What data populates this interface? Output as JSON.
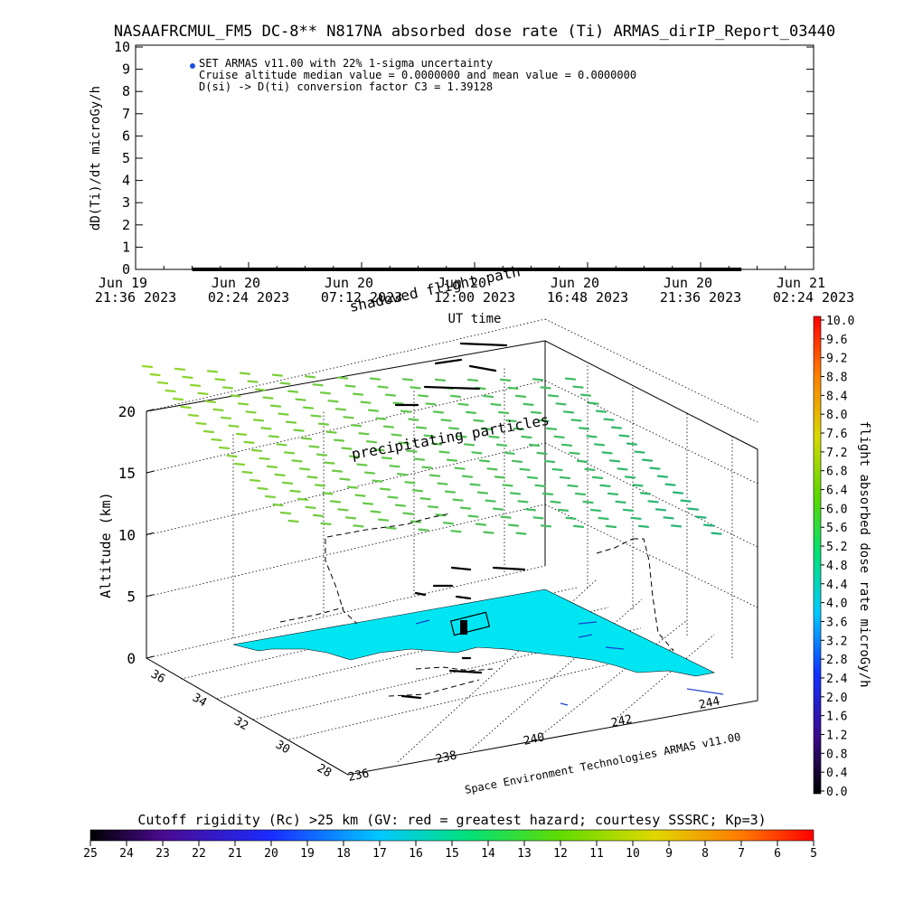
{
  "title": "NASAAFRCMUL_FM5 DC-8** N817NA absorbed dose rate (Ti) ARMAS_dirIP_Report_03440",
  "chart_data": [
    {
      "type": "scatter",
      "ylabel": "dD(Ti)/dt microGy/h",
      "xlabel": "UT time",
      "ylim": [
        0,
        10
      ],
      "yticks": [
        "0",
        "1",
        "2",
        "3",
        "4",
        "5",
        "6",
        "7",
        "8",
        "9",
        "10"
      ],
      "xticks": [
        {
          "line1": "Jun 19",
          "line2": "21:36 2023"
        },
        {
          "line1": "Jun 20",
          "line2": "02:24 2023"
        },
        {
          "line1": "Jun 20",
          "line2": "07:12 2023"
        },
        {
          "line1": "Jun 20",
          "line2": "12:00 2023"
        },
        {
          "line1": "Jun 20",
          "line2": "16:48 2023"
        },
        {
          "line1": "Jun 20",
          "line2": "21:36 2023"
        },
        {
          "line1": "Jun 21",
          "line2": "02:24 2023"
        }
      ],
      "legend": [
        "SET ARMAS v11.00 with 22% 1-sigma uncertainty",
        "Cruise altitude median value = 0.0000000 and mean value = 0.0000000",
        "D(si) -> D(ti) conversion factor C3 = 1.39128"
      ],
      "series": [
        {
          "name": "SET ARMAS v11.00 with 22% 1-sigma uncertainty",
          "x_start": "Jun 20 00:00 2023",
          "x_end": "Jun 20 23:20 2023",
          "y": 0
        }
      ],
      "legend_color": "#1f4fe0",
      "legend_position": "top-left"
    },
    {
      "type": "surface",
      "zlabel": "Altitude (km)",
      "zticks": [
        "0",
        "5",
        "10",
        "15",
        "20"
      ],
      "lat_ticks": [
        "36",
        "34",
        "32",
        "30",
        "28"
      ],
      "lon_ticks": [
        "236",
        "238",
        "240",
        "242",
        "244"
      ],
      "annotations": [
        "shadowed flight path",
        "precipitating particles"
      ],
      "credit": "Space Environment Technologies ARMAS v11.00",
      "surface_color": "#00e5f2"
    },
    {
      "type": "colorbar",
      "label": "flight absorbed dose rate microGy/h",
      "ticks": [
        "10.0",
        "9.6",
        "9.2",
        "8.8",
        "8.4",
        "8.0",
        "7.6",
        "7.2",
        "6.8",
        "6.4",
        "6.0",
        "5.6",
        "5.2",
        "4.8",
        "4.4",
        "4.0",
        "3.6",
        "3.2",
        "2.8",
        "2.4",
        "2.0",
        "1.6",
        "1.2",
        "0.8",
        "0.4",
        "0.0"
      ],
      "orientation": "vertical",
      "position": "right"
    },
    {
      "type": "colorbar",
      "label": "Cutoff rigidity (Rc) >25 km (GV: red = greatest hazard; courtesy SSSRC; Kp=3)",
      "ticks": [
        "25",
        "24",
        "23",
        "22",
        "21",
        "20",
        "19",
        "18",
        "17",
        "16",
        "15",
        "14",
        "13",
        "12",
        "11",
        "10",
        "9",
        "8",
        "7",
        "6",
        "5"
      ],
      "orientation": "horizontal",
      "position": "bottom"
    }
  ]
}
